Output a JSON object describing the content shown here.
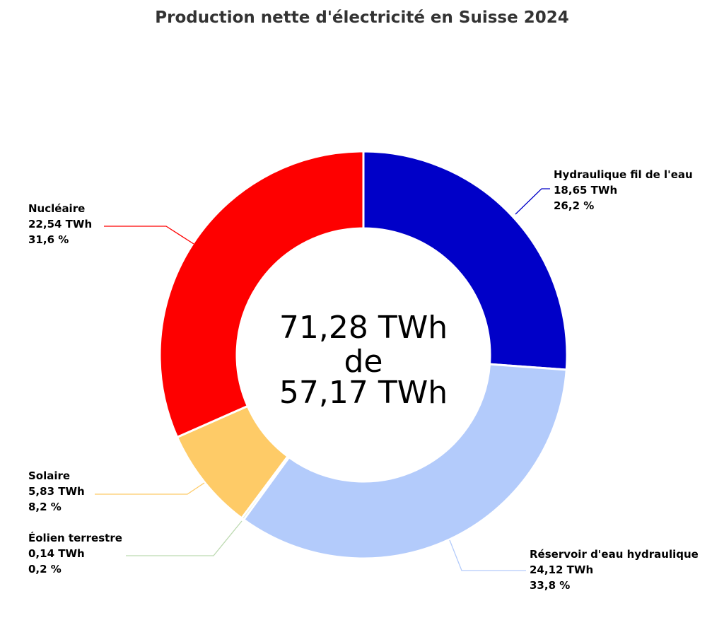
{
  "chart_data": {
    "type": "pie",
    "title": "Production nette d'électricité en Suisse 2024",
    "center_text": [
      "71,28 TWh",
      "de",
      "57,17 TWh"
    ],
    "unit": "TWh",
    "slices": [
      {
        "name": "Hydraulique fil de l'eau",
        "value": 18.65,
        "value_label": "18,65 TWh",
        "percent": 26.2,
        "percent_label": "26,2 %",
        "color": "#0000c8"
      },
      {
        "name": "Réservoir d'eau hydraulique",
        "value": 24.12,
        "value_label": "24,12 TWh",
        "percent": 33.8,
        "percent_label": "33,8 %",
        "color": "#b3cbfb"
      },
      {
        "name": "Éolien terrestre",
        "value": 0.14,
        "value_label": "0,14 TWh",
        "percent": 0.2,
        "percent_label": "0,2 %",
        "color": "#bcd9b0"
      },
      {
        "name": "Solaire",
        "value": 5.83,
        "value_label": "5,83 TWh",
        "percent": 8.2,
        "percent_label": "8,2 %",
        "color": "#fecb67"
      },
      {
        "name": "Nucléaire",
        "value": 22.54,
        "value_label": "22,54 TWh",
        "percent": 31.6,
        "percent_label": "31,6 %",
        "color": "#fe0000"
      }
    ]
  }
}
